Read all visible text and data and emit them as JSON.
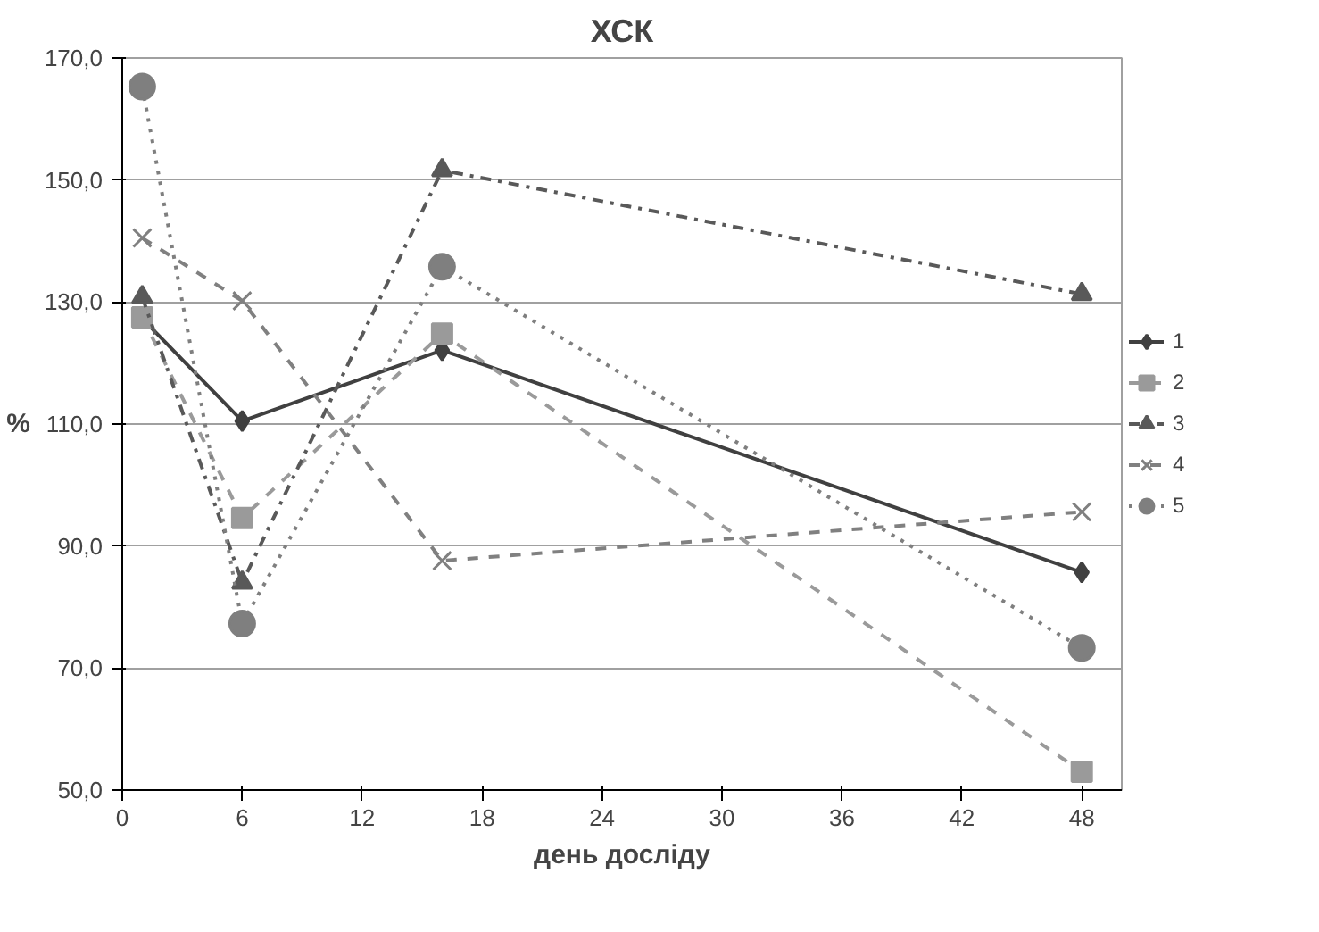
{
  "chart_data": {
    "type": "line",
    "title": "ХСК",
    "xlabel": "день досліду",
    "ylabel": "%",
    "x": [
      1,
      6,
      16,
      48
    ],
    "xlim": [
      0,
      50
    ],
    "xticks": [
      0,
      6,
      12,
      18,
      24,
      30,
      36,
      42,
      48
    ],
    "ylim": [
      50,
      170
    ],
    "yticks": [
      {
        "value": 50,
        "label": "50,0"
      },
      {
        "value": 70,
        "label": "70,0"
      },
      {
        "value": 90,
        "label": "90,0"
      },
      {
        "value": 110,
        "label": "110,0"
      },
      {
        "value": 130,
        "label": "130,0"
      },
      {
        "value": 150,
        "label": "150,0"
      },
      {
        "value": 170,
        "label": "170,0"
      }
    ],
    "grid": "y",
    "legend": "right",
    "series": [
      {
        "name": "1",
        "color": "#404040",
        "marker": "diamond",
        "line_style": "solid",
        "values": [
          127.3,
          110.5,
          122.1,
          85.7
        ]
      },
      {
        "name": "2",
        "color": "#9a9a9a",
        "marker": "square",
        "line_style": "dashed",
        "values": [
          127.5,
          94.6,
          124.8,
          53.0
        ]
      },
      {
        "name": "3",
        "color": "#595959",
        "marker": "triangle",
        "line_style": "dashdot",
        "values": [
          130.8,
          84.0,
          151.6,
          131.3
        ]
      },
      {
        "name": "4",
        "color": "#808080",
        "marker": "cross",
        "line_style": "dashed",
        "values": [
          140.5,
          130.2,
          87.6,
          95.6
        ]
      },
      {
        "name": "5",
        "color": "#7f7f7f",
        "marker": "circle",
        "line_style": "dotted",
        "values": [
          165.3,
          77.3,
          135.8,
          73.3
        ]
      }
    ]
  }
}
